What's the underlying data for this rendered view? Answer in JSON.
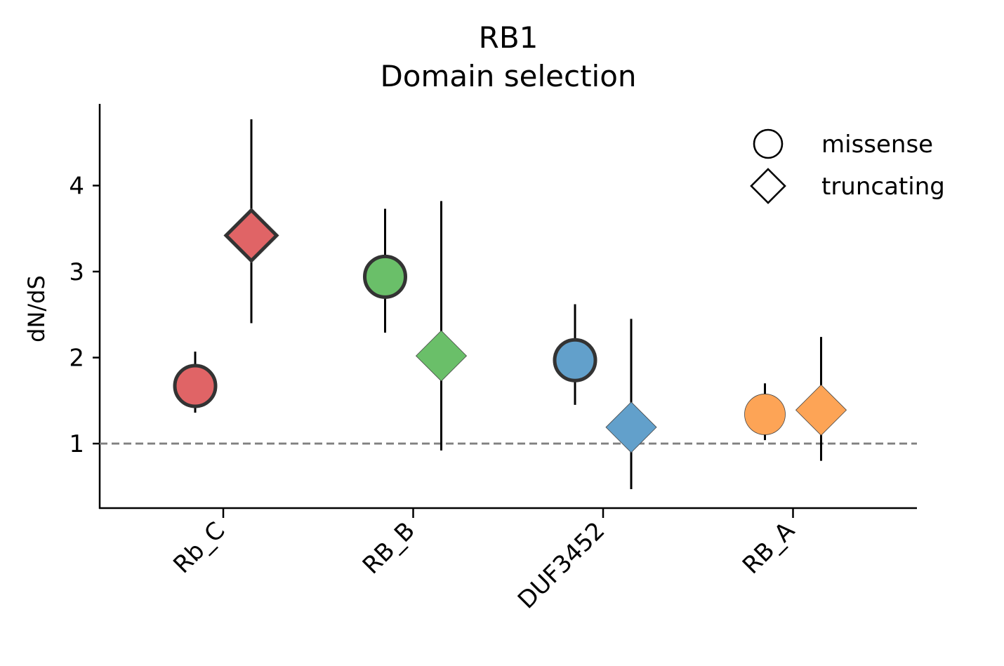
{
  "chart_data": {
    "type": "scatter",
    "title": "RB1",
    "subtitle": "Domain selection",
    "xlabel": "",
    "ylabel": "dN/dS",
    "categories": [
      "Rb_C",
      "RB_B",
      "DUF3452",
      "RB_A"
    ],
    "ylim": [
      0.25,
      4.95
    ],
    "yticks": [
      1,
      2,
      3,
      4
    ],
    "reference_line": {
      "y": 1,
      "style": "dashed",
      "color": "#808080"
    },
    "grid": false,
    "legend_position": "top-right",
    "colors": {
      "Rb_C": "#e06466",
      "RB_B": "#6abf69",
      "DUF3452": "#62a0cb",
      "RB_A": "#fda456"
    },
    "series": [
      {
        "name": "missense",
        "marker": "circle",
        "points": [
          {
            "category": "Rb_C",
            "value": 1.67,
            "lower": 1.36,
            "upper": 2.07,
            "highlighted": true
          },
          {
            "category": "RB_B",
            "value": 2.94,
            "lower": 2.29,
            "upper": 3.73,
            "highlighted": true
          },
          {
            "category": "DUF3452",
            "value": 1.97,
            "lower": 1.45,
            "upper": 2.62,
            "highlighted": true
          },
          {
            "category": "RB_A",
            "value": 1.34,
            "lower": 1.04,
            "upper": 1.7,
            "highlighted": false
          }
        ]
      },
      {
        "name": "truncating",
        "marker": "diamond",
        "points": [
          {
            "category": "Rb_C",
            "value": 3.42,
            "lower": 2.4,
            "upper": 4.77,
            "highlighted": true
          },
          {
            "category": "RB_B",
            "value": 2.02,
            "lower": 0.92,
            "upper": 3.82,
            "highlighted": false
          },
          {
            "category": "DUF3452",
            "value": 1.19,
            "lower": 0.47,
            "upper": 2.45,
            "highlighted": false
          },
          {
            "category": "RB_A",
            "value": 1.39,
            "lower": 0.8,
            "upper": 2.24,
            "highlighted": false
          }
        ]
      }
    ]
  }
}
